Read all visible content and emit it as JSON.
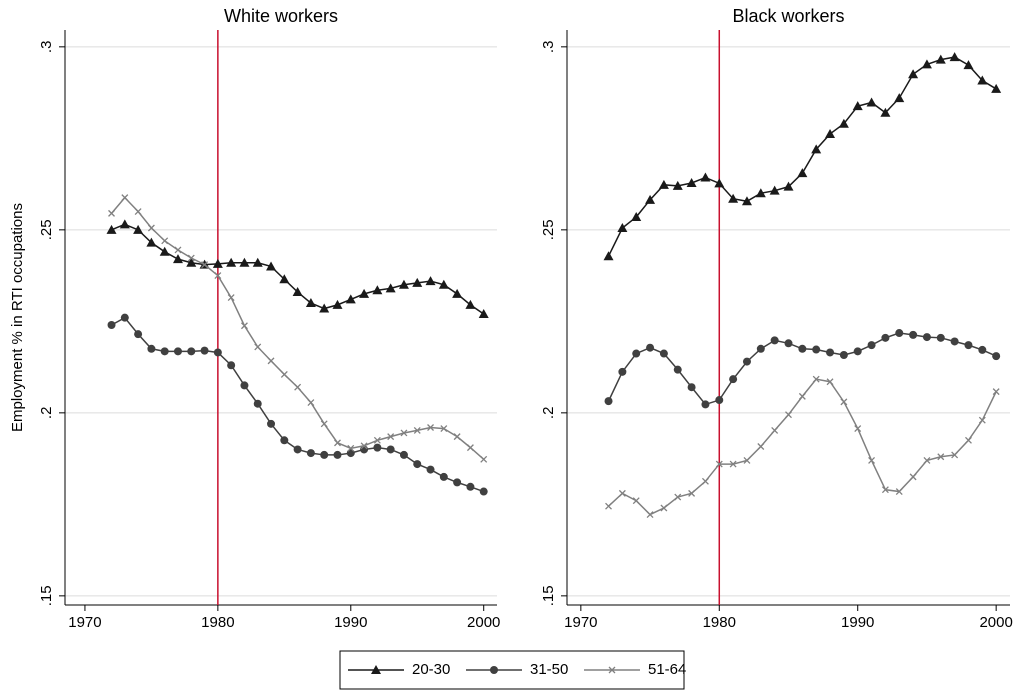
{
  "chart_data": [
    {
      "type": "line",
      "title": "White workers",
      "ylabel": "Employment % in RTI occupations",
      "x": [
        1972,
        1973,
        1974,
        1975,
        1976,
        1977,
        1978,
        1979,
        1980,
        1981,
        1982,
        1983,
        1984,
        1985,
        1986,
        1987,
        1988,
        1989,
        1990,
        1991,
        1992,
        1993,
        1994,
        1995,
        1996,
        1997,
        1998,
        1999,
        2000
      ],
      "series": [
        {
          "name": "20-30",
          "color": "#1a1a1a",
          "marker": "triangle",
          "values": [
            0.25,
            0.2515,
            0.25,
            0.2465,
            0.244,
            0.242,
            0.241,
            0.2405,
            0.2407,
            0.241,
            0.241,
            0.241,
            0.24,
            0.2365,
            0.233,
            0.23,
            0.2285,
            0.2295,
            0.231,
            0.2325,
            0.2335,
            0.234,
            0.235,
            0.2355,
            0.236,
            0.235,
            0.2325,
            0.2295,
            0.227
          ]
        },
        {
          "name": "31-50",
          "color": "#404040",
          "marker": "circle",
          "values": [
            0.224,
            0.226,
            0.2215,
            0.2175,
            0.2168,
            0.2168,
            0.2168,
            0.217,
            0.2165,
            0.213,
            0.2075,
            0.2025,
            0.197,
            0.1925,
            0.19,
            0.189,
            0.1885,
            0.1885,
            0.189,
            0.19,
            0.1905,
            0.19,
            0.1885,
            0.186,
            0.1845,
            0.1825,
            0.181,
            0.1798,
            0.1785
          ]
        },
        {
          "name": "51-64",
          "color": "#808080",
          "marker": "x",
          "values": [
            0.2545,
            0.2588,
            0.255,
            0.2505,
            0.247,
            0.2445,
            0.2423,
            0.2405,
            0.2375,
            0.2315,
            0.2238,
            0.218,
            0.2142,
            0.2105,
            0.207,
            0.2028,
            0.197,
            0.1918,
            0.1903,
            0.191,
            0.1925,
            0.1935,
            0.1945,
            0.1952,
            0.196,
            0.1957,
            0.1935,
            0.1905,
            0.1873
          ]
        }
      ],
      "xlim": [
        1968.5,
        2001
      ],
      "xticks": [
        1970,
        1980,
        1990,
        2000
      ],
      "ylim": [
        0.1475,
        0.3046
      ],
      "yticks": [
        {
          "value": 0.15,
          "label": ".15"
        },
        {
          "value": 0.2,
          "label": ".2"
        },
        {
          "value": 0.25,
          "label": ".25"
        },
        {
          "value": 0.3,
          "label": ".3"
        }
      ],
      "grid": true,
      "vline": 1980,
      "vline_color": "#c8102e"
    },
    {
      "type": "line",
      "title": "Black workers",
      "x": [
        1972,
        1973,
        1974,
        1975,
        1976,
        1977,
        1978,
        1979,
        1980,
        1981,
        1982,
        1983,
        1984,
        1985,
        1986,
        1987,
        1988,
        1989,
        1990,
        1991,
        1992,
        1993,
        1994,
        1995,
        1996,
        1997,
        1998,
        1999,
        2000
      ],
      "series": [
        {
          "color": "#1a1a1a",
          "marker": "triangle",
          "values": [
            0.2428,
            0.2505,
            0.2535,
            0.2582,
            0.2623,
            0.262,
            0.2628,
            0.2643,
            0.2627,
            0.2585,
            0.2578,
            0.26,
            0.2607,
            0.2618,
            0.2655,
            0.272,
            0.2762,
            0.279,
            0.2838,
            0.2848,
            0.282,
            0.286,
            0.2925,
            0.2952,
            0.2965,
            0.2972,
            0.295,
            0.2908,
            0.2885
          ]
        },
        {
          "color": "#404040",
          "marker": "circle",
          "values": [
            0.2032,
            0.2112,
            0.2162,
            0.2178,
            0.2162,
            0.2118,
            0.207,
            0.2023,
            0.2035,
            0.2092,
            0.214,
            0.2175,
            0.2198,
            0.219,
            0.2175,
            0.2173,
            0.2165,
            0.2158,
            0.2168,
            0.2185,
            0.2205,
            0.2218,
            0.2213,
            0.2207,
            0.2205,
            0.2195,
            0.2185,
            0.2172,
            0.2155
          ]
        },
        {
          "color": "#808080",
          "marker": "x",
          "values": [
            0.1745,
            0.178,
            0.176,
            0.1722,
            0.174,
            0.177,
            0.178,
            0.1813,
            0.186,
            0.186,
            0.187,
            0.1908,
            0.1952,
            0.1995,
            0.2045,
            0.2092,
            0.2085,
            0.203,
            0.1957,
            0.187,
            0.179,
            0.1785,
            0.1825,
            0.187,
            0.188,
            0.1885,
            0.1925,
            0.198,
            0.2058
          ]
        }
      ],
      "xlim": [
        1969,
        2001
      ],
      "xticks": [
        1970,
        1980,
        1990,
        2000
      ],
      "ylim": [
        0.1475,
        0.3046
      ],
      "yticks": [
        {
          "value": 0.15,
          "label": ".15"
        },
        {
          "value": 0.2,
          "label": ".2"
        },
        {
          "value": 0.25,
          "label": ".25"
        },
        {
          "value": 0.3,
          "label": ".3"
        }
      ],
      "grid": true,
      "vline": 1980,
      "vline_color": "#c8102e"
    }
  ]
}
